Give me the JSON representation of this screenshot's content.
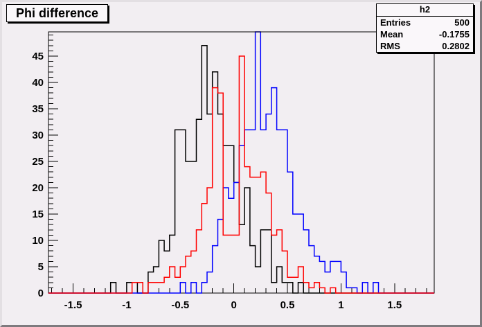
{
  "window": {
    "background": "#f2eef2",
    "frame_color": "#000000"
  },
  "title_box": {
    "text": "Phi difference"
  },
  "stats_box": {
    "header": "h2",
    "rows": [
      {
        "label": "Entries",
        "value": "500"
      },
      {
        "label": "Mean",
        "value": "-0.1755"
      },
      {
        "label": "RMS",
        "value": "0.2802"
      }
    ]
  },
  "chart_data": {
    "type": "bar",
    "subtype": "step-histogram-overlay",
    "title": "Phi difference",
    "xlabel": "",
    "ylabel": "",
    "xlim": [
      -1.73,
      1.87
    ],
    "ylim": [
      0,
      49.6
    ],
    "grid": false,
    "legend": "none",
    "x_major_ticks": [
      -1.5,
      -1,
      -0.5,
      0,
      0.5,
      1,
      1.5
    ],
    "x_tick_labels": [
      "-1.5",
      "-1",
      "-0.5",
      "0",
      "0.5",
      "1",
      "1.5"
    ],
    "x_minor_step": 0.1,
    "y_major_ticks": [
      0,
      5,
      10,
      15,
      20,
      25,
      30,
      35,
      40,
      45
    ],
    "y_tick_labels": [
      "0",
      "5",
      "10",
      "15",
      "20",
      "25",
      "30",
      "35",
      "40",
      "45"
    ],
    "y_minor_step": 1,
    "series": [
      {
        "name": "black-histogram",
        "color": "#000000",
        "bin_start": -1.15,
        "bin_width": 0.05,
        "counts": [
          2,
          0,
          0,
          2,
          2,
          0,
          0,
          4,
          5,
          10,
          8,
          11,
          31,
          31,
          25,
          25,
          33,
          47,
          34,
          42,
          34,
          28,
          28,
          21,
          13,
          20,
          9,
          5,
          12,
          12,
          2,
          5,
          2,
          2,
          0,
          2
        ]
      },
      {
        "name": "blue-histogram",
        "color": "#0000ff",
        "bin_start": -0.5,
        "bin_width": 0.05,
        "counts": [
          2,
          0,
          2,
          0,
          2,
          4,
          9,
          14,
          20,
          18,
          21,
          28,
          31,
          31,
          50,
          31,
          34,
          39,
          31,
          31,
          23,
          15,
          15,
          12,
          9,
          7,
          6,
          4,
          6,
          6,
          4,
          1,
          1,
          0,
          2,
          0,
          2,
          0
        ]
      },
      {
        "name": "red-histogram",
        "color": "#ff0000",
        "bin_start": -0.95,
        "bin_width": 0.05,
        "counts": [
          2,
          2,
          0,
          2,
          2,
          2,
          3,
          5,
          3,
          5,
          7,
          8,
          12,
          17,
          20,
          39,
          38,
          11,
          11,
          11,
          45,
          24,
          22,
          22,
          23,
          19,
          11,
          12,
          8,
          3,
          3,
          5,
          2,
          1,
          2,
          1,
          0,
          1
        ]
      }
    ]
  }
}
